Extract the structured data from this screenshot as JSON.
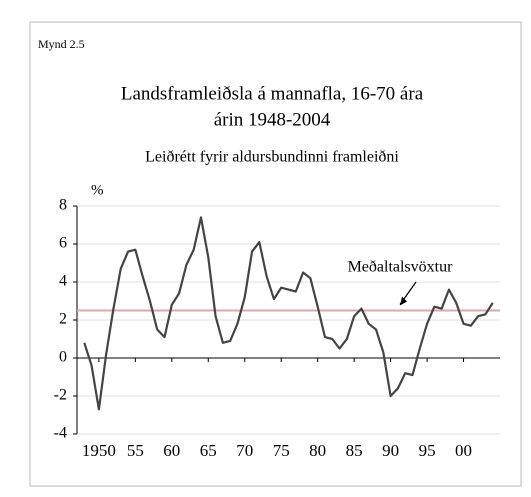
{
  "figure_label": "Mynd 2.5",
  "chart_data": {
    "type": "line",
    "title": [
      "Landsframleiðsla á mannafla, 16-70 ára",
      "árin 1948-2004"
    ],
    "subtitle": "Leiðrétt fyrir aldursbundinni framleiðni",
    "y_unit": "%",
    "x": [
      1948,
      1949,
      1950,
      1951,
      1952,
      1953,
      1954,
      1955,
      1956,
      1957,
      1958,
      1959,
      1960,
      1961,
      1962,
      1963,
      1964,
      1965,
      1966,
      1967,
      1968,
      1969,
      1970,
      1971,
      1972,
      1973,
      1974,
      1975,
      1976,
      1977,
      1978,
      1979,
      1980,
      1981,
      1982,
      1983,
      1984,
      1985,
      1986,
      1987,
      1988,
      1989,
      1990,
      1991,
      1992,
      1993,
      1994,
      1995,
      1996,
      1997,
      1998,
      1999,
      2000,
      2001,
      2002,
      2003,
      2004
    ],
    "series": [
      {
        "color": "#444444",
        "values": [
          0.8,
          -0.4,
          -2.7,
          0.2,
          2.6,
          4.7,
          5.6,
          5.7,
          4.3,
          3.0,
          1.5,
          1.1,
          2.8,
          3.4,
          4.9,
          5.7,
          7.4,
          5.3,
          2.2,
          0.8,
          0.9,
          1.8,
          3.2,
          5.6,
          6.1,
          4.3,
          3.1,
          3.7,
          3.6,
          3.5,
          4.5,
          4.2,
          2.7,
          1.1,
          1.0,
          0.5,
          1.0,
          2.2,
          2.6,
          1.8,
          1.5,
          0.3,
          -2.0,
          -1.6,
          -0.8,
          -0.9,
          0.5,
          1.8,
          2.7,
          2.6,
          3.6,
          2.9,
          1.8,
          1.7,
          2.2,
          2.3,
          2.9
        ]
      }
    ],
    "average": {
      "value": 2.5,
      "label": "Meðaltalsvöxtur",
      "color": "#d9aaaa"
    },
    "xlim": [
      1947,
      2005
    ],
    "xticks": [
      1950,
      {
        "value": 1955,
        "label": "55"
      },
      {
        "value": 1960,
        "label": "60"
      },
      {
        "value": 1965,
        "label": "65"
      },
      {
        "value": 1970,
        "label": "70"
      },
      {
        "value": 1975,
        "label": "75"
      },
      {
        "value": 1980,
        "label": "80"
      },
      {
        "value": 1985,
        "label": "85"
      },
      {
        "value": 1990,
        "label": "90"
      },
      {
        "value": 1995,
        "label": "95"
      },
      {
        "value": 2000,
        "label": "00"
      }
    ],
    "ylim": [
      -4,
      8
    ],
    "yticks": [
      -4,
      -2,
      0,
      2,
      4,
      6,
      8
    ],
    "grid": true
  }
}
